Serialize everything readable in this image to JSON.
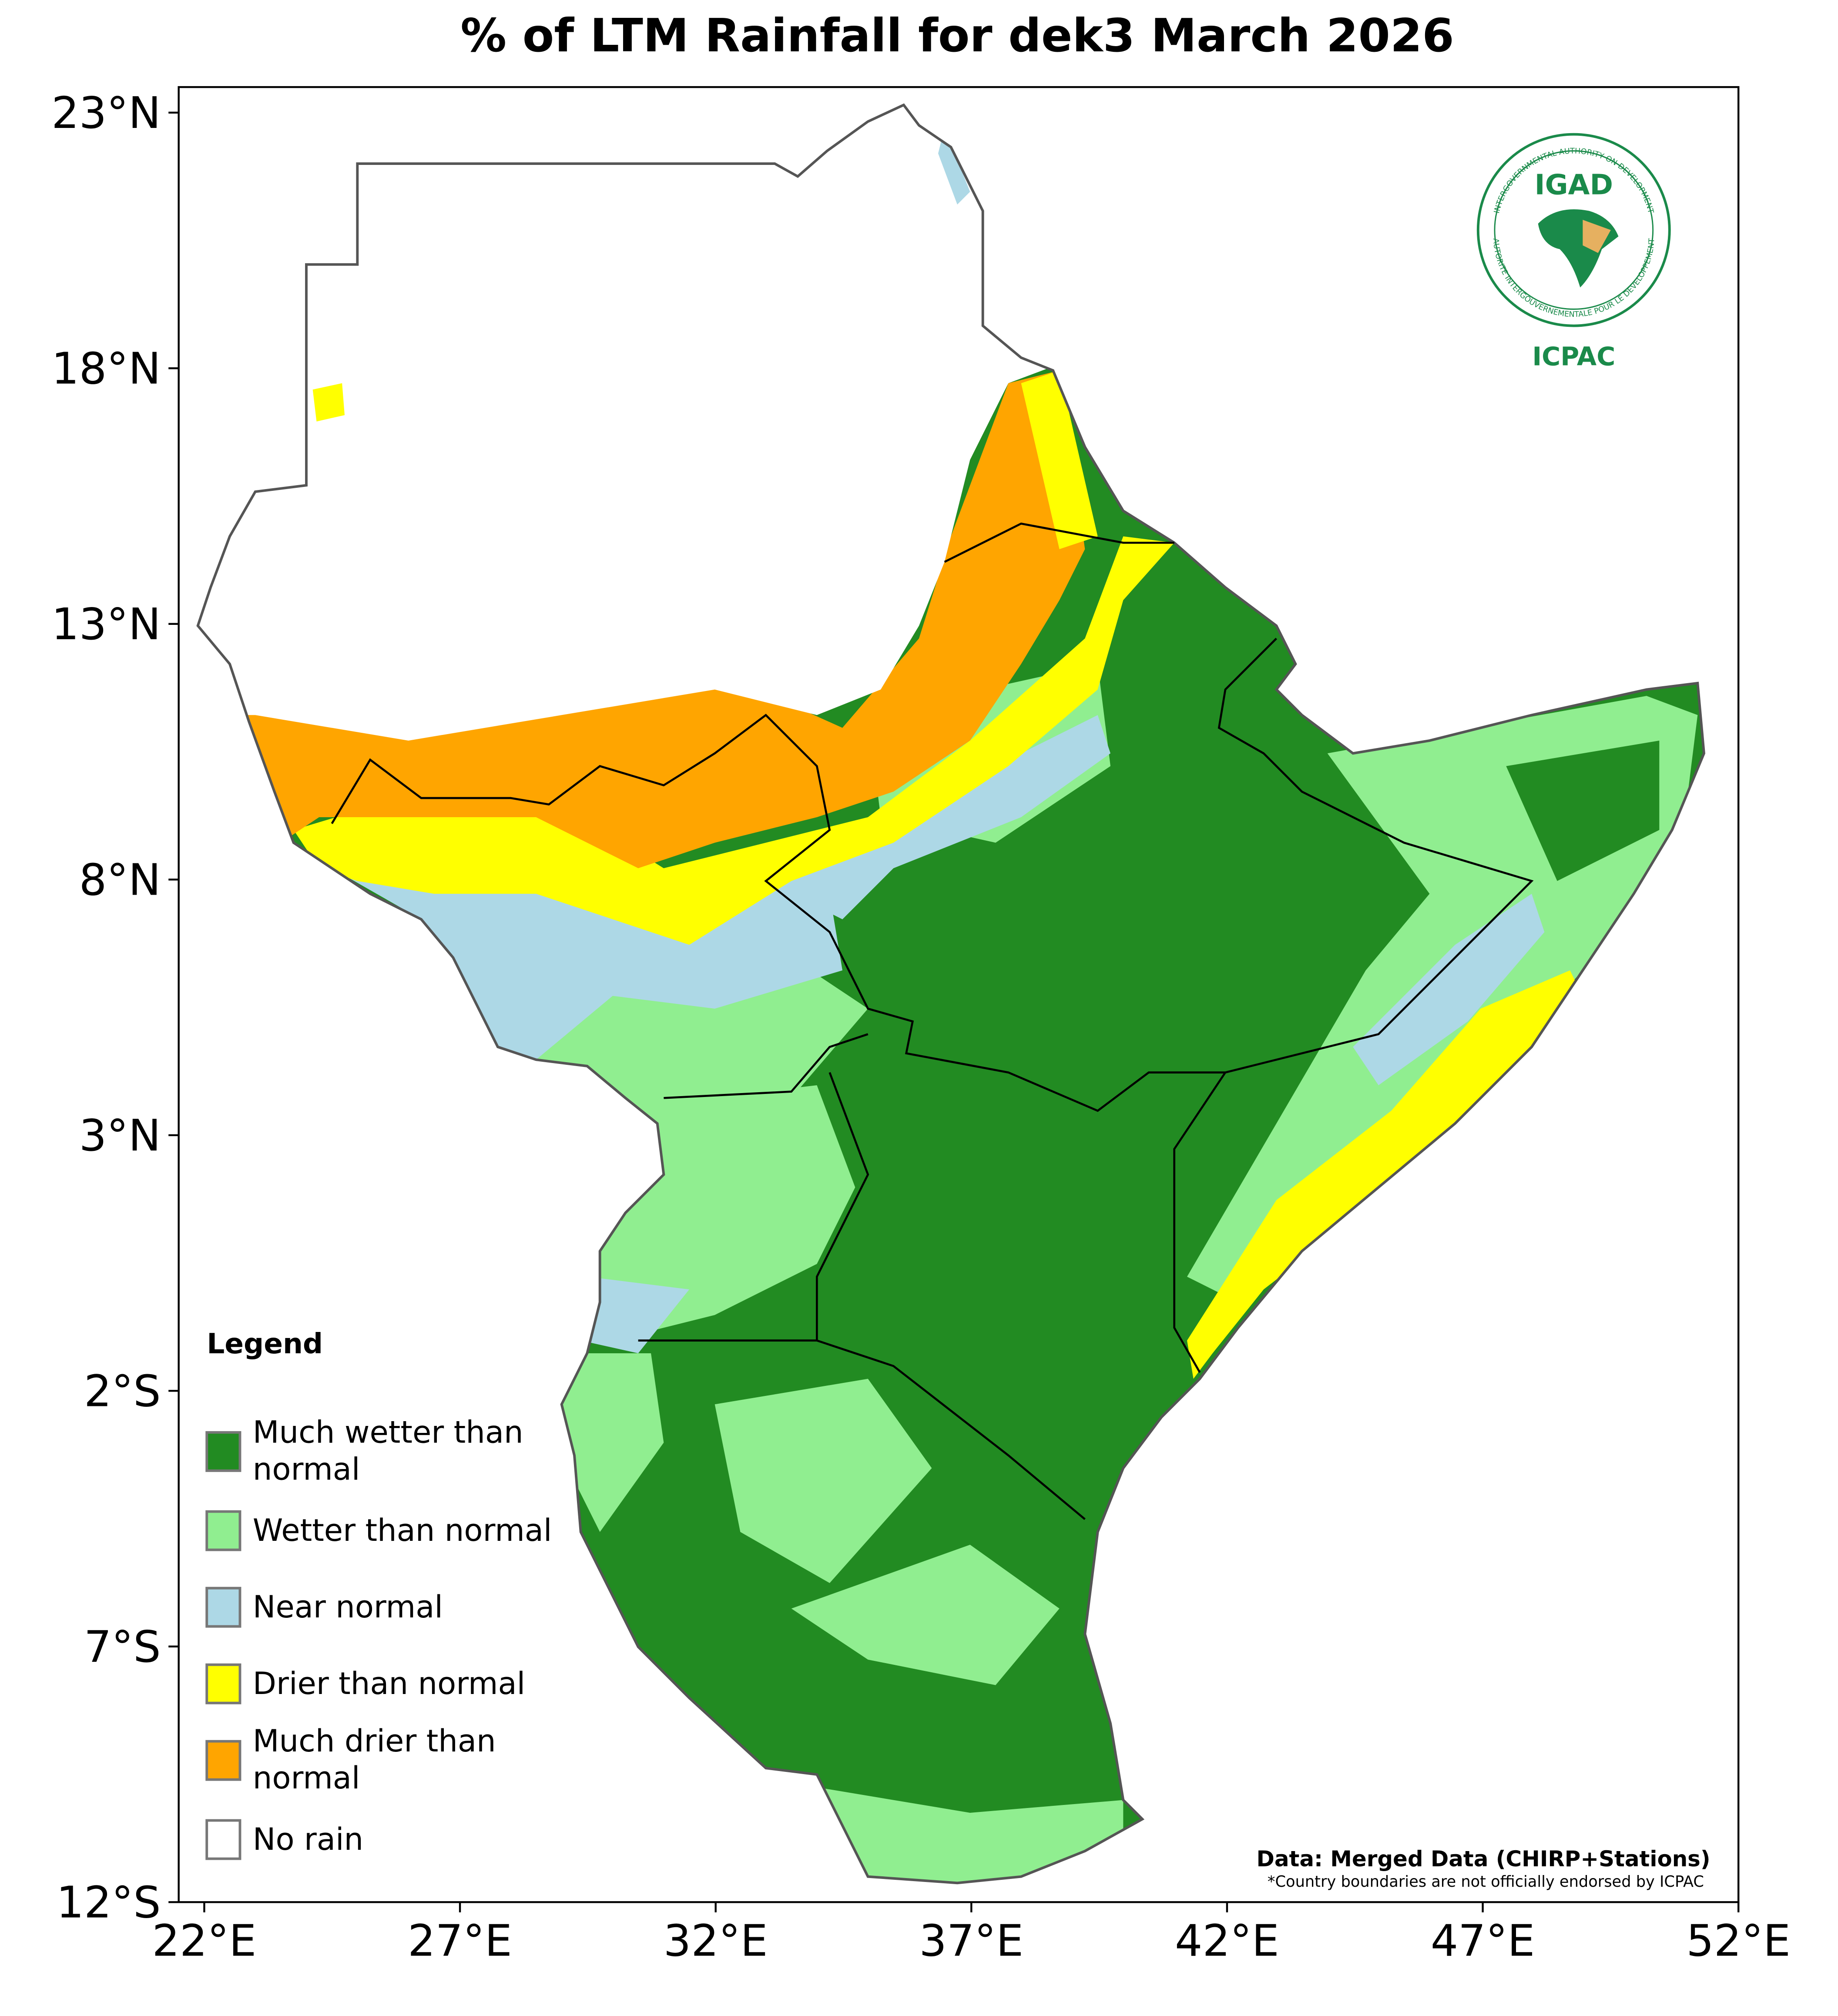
{
  "title": "% of LTM Rainfall for dek3 March 2026",
  "xlim": [
    21.5,
    52
  ],
  "ylim": [
    -12,
    23.5
  ],
  "xticks": [
    {
      "value": 22,
      "label": "22°E"
    },
    {
      "value": 27,
      "label": "27°E"
    },
    {
      "value": 32,
      "label": "32°E"
    },
    {
      "value": 37,
      "label": "37°E"
    },
    {
      "value": 42,
      "label": "42°E"
    },
    {
      "value": 47,
      "label": "47°E"
    },
    {
      "value": 52,
      "label": "52°E"
    }
  ],
  "yticks": [
    {
      "value": 23,
      "label": "23°N"
    },
    {
      "value": 18,
      "label": "18°N"
    },
    {
      "value": 13,
      "label": "13°N"
    },
    {
      "value": 8,
      "label": "8°N"
    },
    {
      "value": 3,
      "label": "3°N"
    },
    {
      "value": -2,
      "label": "2°S"
    },
    {
      "value": -7,
      "label": "7°S"
    },
    {
      "value": -12,
      "label": "12°S"
    }
  ],
  "legend": {
    "title": "Legend",
    "items": [
      {
        "label": "Much wetter than normal",
        "color": "#228b22"
      },
      {
        "label": "Wetter than normal",
        "color": "#90ee90"
      },
      {
        "label": "Near normal",
        "color": "#add8e6"
      },
      {
        "label": "Drier than normal",
        "color": "#ffff00"
      },
      {
        "label": "Much drier than normal",
        "color": "#ffa500"
      },
      {
        "label": "No rain",
        "color": "#ffffff"
      }
    ]
  },
  "source": "Data: Merged Data (CHIRP+Stations)",
  "disclaimer": "*Country boundaries are not officially endorsed by ICPAC",
  "logo": {
    "top": "IGAD",
    "bottom": "ICPAC",
    "ring_top": "INTERGOVERNMENTAL AUTHORITY ON DEVELOPMENT",
    "ring_bottom": "AUTORITE INTERGOUVERNEMENTALE POUR LE DEVELOPPEMENT"
  }
}
